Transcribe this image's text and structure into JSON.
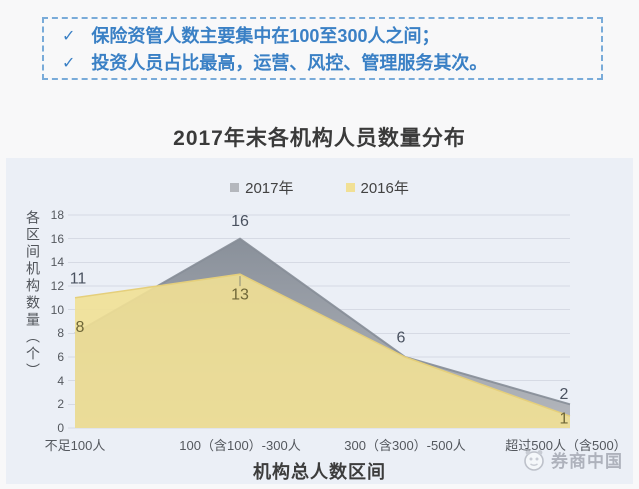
{
  "callout": {
    "bullet": "✓",
    "items": [
      {
        "text": "保险资管人数主要集中在100至300人之间；"
      },
      {
        "text": "投资人员占比最高，运营、风控、管理服务其次。"
      }
    ]
  },
  "title": "2017年末各机构人员数量分布",
  "watermark": {
    "label": "券商中国"
  },
  "colors": {
    "accent_blue": "#3a80c5",
    "callout_border": "#79abd9",
    "panel_bg": "#ebeff6",
    "grid": "#d6dae4",
    "axis_text": "#54585e",
    "series_2017_fill_top": "#89909a",
    "series_2017_fill_bottom": "#b4b7bd",
    "series_2017_edge": "#868d97",
    "series_2016_fill": "#f1e095",
    "series_2016_edge": "#e5cf7b",
    "label_dark": "#4a5260",
    "label_olive": "#6f6738",
    "watermark_gray": "#a4a8b2"
  },
  "chart_data": {
    "type": "area",
    "title": "2017年末各机构人员数量分布",
    "categories": [
      "不足100人",
      "100（含100）-300人",
      "300（含300）-500人",
      "超过500人（含500）"
    ],
    "series": [
      {
        "name": "2017年",
        "values": [
          8,
          16,
          6,
          2
        ]
      },
      {
        "name": "2016年",
        "values": [
          11,
          13,
          6,
          1
        ]
      }
    ],
    "visible_point_labels": {
      "2017年": [
        "8",
        "16",
        "6",
        "2"
      ],
      "2016年": [
        "11",
        "13",
        "",
        "1"
      ]
    },
    "xlabel": "机构总人数区间",
    "ylabel": "各区间机构数量（个）",
    "ylim": [
      0,
      18
    ],
    "ytick_step": 2,
    "grid": true,
    "legend_position": "top"
  }
}
